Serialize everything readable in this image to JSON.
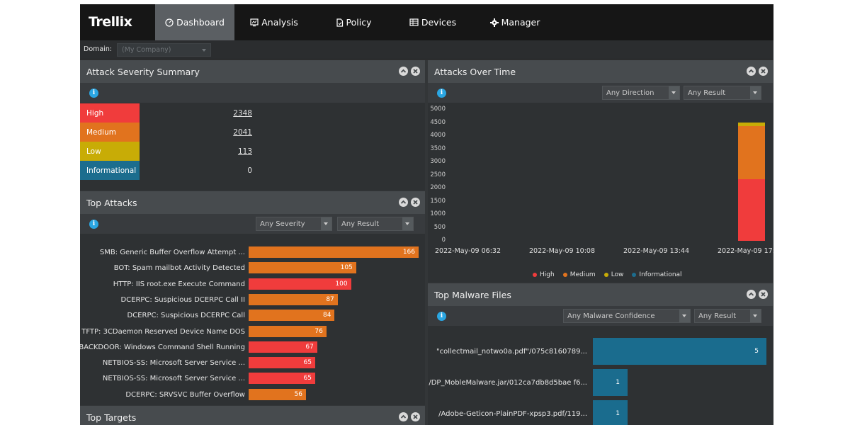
{
  "nav": {
    "brand": "Trellix",
    "tabs": [
      {
        "label": "Dashboard",
        "icon": "dashboard-icon",
        "active": true
      },
      {
        "label": "Analysis",
        "icon": "analysis-icon",
        "active": false
      },
      {
        "label": "Policy",
        "icon": "policy-icon",
        "active": false
      },
      {
        "label": "Devices",
        "icon": "devices-icon",
        "active": false
      },
      {
        "label": "Manager",
        "icon": "gear-icon",
        "active": false
      }
    ]
  },
  "domain": {
    "label": "Domain:",
    "value": "(My Company)"
  },
  "severity_summary": {
    "title": "Attack Severity Summary",
    "rows": [
      {
        "label": "High",
        "count": "2348",
        "color": "#f03c3c",
        "link": true
      },
      {
        "label": "Medium",
        "count": "2041",
        "color": "#e1731e",
        "link": true
      },
      {
        "label": "Low",
        "count": "113",
        "color": "#c8ac06",
        "link": true
      },
      {
        "label": "Informational",
        "count": "0",
        "color": "#1c6d8e",
        "link": false
      }
    ]
  },
  "top_attacks": {
    "title": "Top Attacks",
    "filters": [
      "Any Severity",
      "Any Result"
    ],
    "max": 166,
    "rows": [
      {
        "name": "SMB: Generic Buffer Overflow Attempt ...",
        "value": 166,
        "severity": "medium"
      },
      {
        "name": "BOT: Spam mailbot Activity Detected",
        "value": 105,
        "severity": "medium"
      },
      {
        "name": "HTTP: IIS root.exe Execute Command",
        "value": 100,
        "severity": "high"
      },
      {
        "name": "DCERPC: Suspicious DCERPC Call II",
        "value": 87,
        "severity": "medium"
      },
      {
        "name": "DCERPC: Suspicious DCERPC Call",
        "value": 84,
        "severity": "medium"
      },
      {
        "name": "TFTP: 3CDaemon Reserved Device Name DOS",
        "value": 76,
        "severity": "medium"
      },
      {
        "name": "BACKDOOR: Windows Command Shell Running",
        "value": 67,
        "severity": "high"
      },
      {
        "name": "NETBIOS-SS: Microsoft Server Service ...",
        "value": 65,
        "severity": "high"
      },
      {
        "name": "NETBIOS-SS: Microsoft Server Service ...",
        "value": 65,
        "severity": "high"
      },
      {
        "name": "DCERPC: SRVSVC Buffer Overflow",
        "value": 56,
        "severity": "medium"
      }
    ]
  },
  "top_targets": {
    "title": "Top Targets"
  },
  "attacks_over_time": {
    "title": "Attacks Over Time",
    "filters": [
      "Any Direction",
      "Any Result"
    ]
  },
  "chart_data": {
    "type": "bar",
    "stacked": true,
    "x_ticks": [
      "2022-May-09 06:32",
      "2022-May-09 10:08",
      "2022-May-09 13:44",
      "2022-May-09 17:"
    ],
    "y_ticks": [
      "0",
      "500",
      "1000",
      "1500",
      "2000",
      "2500",
      "3000",
      "3500",
      "4000",
      "4500",
      "5000"
    ],
    "ylim": [
      0,
      5000
    ],
    "series": [
      {
        "name": "High",
        "color": "#f03c3c",
        "values": [
          0,
          0,
          0,
          2348
        ]
      },
      {
        "name": "Medium",
        "color": "#e1731e",
        "values": [
          0,
          0,
          0,
          2041
        ]
      },
      {
        "name": "Low",
        "color": "#c8ac06",
        "values": [
          0,
          0,
          0,
          113
        ]
      },
      {
        "name": "Informational",
        "color": "#1c6d8e",
        "values": [
          0,
          0,
          0,
          0
        ]
      }
    ],
    "legend_position": "bottom"
  },
  "top_malware": {
    "title": "Top Malware Files",
    "filters": [
      "Any Malware Confidence",
      "Any Result"
    ],
    "max": 5,
    "rows": [
      {
        "name": "\"collectmail_notwo0a.pdf\"/075c8160789...",
        "value": 5
      },
      {
        "name": "/DP_MobleMalware.jar/012ca7db8d5bae f6...",
        "value": 1
      },
      {
        "name": "/Adobe-Geticon-PlainPDF-xpsp3.pdf/119...",
        "value": 1
      }
    ]
  },
  "colors": {
    "high": "#f03c3c",
    "medium": "#e1731e",
    "low": "#c8ac06",
    "informational": "#1c6d8e"
  }
}
